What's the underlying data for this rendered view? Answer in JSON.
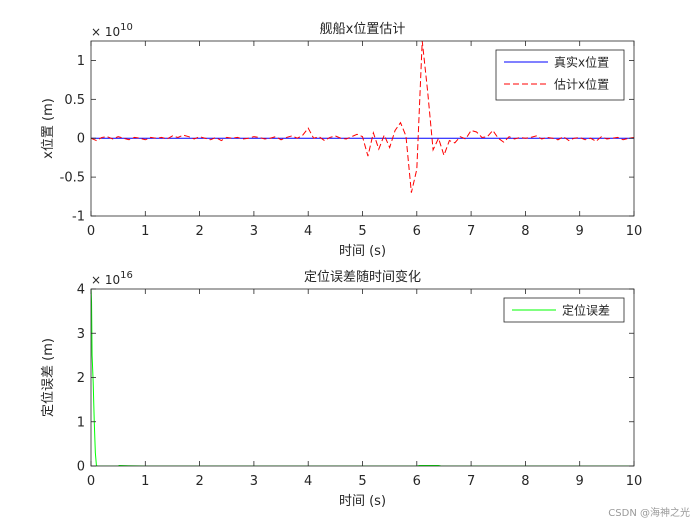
{
  "watermark": "CSDN @海神之光",
  "chart_data": [
    {
      "type": "line",
      "title": "舰船x位置估计",
      "xlabel": "时间 (s)",
      "ylabel": "x位置 (m)",
      "xlim": [
        0,
        10
      ],
      "ylim": [
        -1,
        1.25
      ],
      "xticks": [
        "0",
        "1",
        "2",
        "3",
        "4",
        "5",
        "6",
        "7",
        "8",
        "9",
        "10"
      ],
      "yticks": [
        "-1",
        "-0.5",
        "0",
        "0.5",
        "1"
      ],
      "y_exponent_base": "× 10",
      "y_exponent_power": "10",
      "grid": false,
      "legend_position": "top-right",
      "series": [
        {
          "name": "真实x位置",
          "color": "#0000ff",
          "style": "solid",
          "x": [
            0,
            10
          ],
          "y": [
            0,
            0
          ]
        },
        {
          "name": "估计x位置",
          "color": "#ff0000",
          "style": "dashed",
          "x": [
            0,
            0.1,
            0.2,
            0.3,
            0.4,
            0.5,
            0.6,
            0.7,
            0.8,
            0.9,
            1.0,
            1.1,
            1.2,
            1.3,
            1.4,
            1.5,
            1.6,
            1.7,
            1.8,
            1.9,
            2.0,
            2.1,
            2.2,
            2.3,
            2.4,
            2.5,
            2.6,
            2.7,
            2.8,
            2.9,
            3.0,
            3.1,
            3.2,
            3.3,
            3.4,
            3.5,
            3.6,
            3.7,
            3.8,
            3.9,
            4.0,
            4.1,
            4.2,
            4.3,
            4.4,
            4.5,
            4.6,
            4.7,
            4.8,
            4.9,
            5.0,
            5.1,
            5.2,
            5.3,
            5.4,
            5.5,
            5.6,
            5.7,
            5.8,
            5.9,
            6.0,
            6.1,
            6.2,
            6.3,
            6.4,
            6.5,
            6.6,
            6.7,
            6.8,
            6.9,
            7.0,
            7.1,
            7.2,
            7.3,
            7.4,
            7.5,
            7.6,
            7.7,
            7.8,
            7.9,
            8.0,
            8.1,
            8.2,
            8.3,
            8.4,
            8.5,
            8.6,
            8.7,
            8.8,
            8.9,
            9.0,
            9.1,
            9.2,
            9.3,
            9.4,
            9.5,
            9.6,
            9.7,
            9.8,
            9.9,
            10.0
          ],
          "y": [
            0.0,
            -0.03,
            0.01,
            0.02,
            -0.01,
            0.02,
            0.0,
            -0.02,
            0.01,
            0.0,
            -0.02,
            0.01,
            0.0,
            0.01,
            -0.01,
            0.03,
            0.01,
            0.04,
            0.02,
            -0.01,
            0.02,
            0.0,
            -0.02,
            0.01,
            -0.03,
            0.01,
            0.0,
            0.01,
            -0.01,
            0.0,
            0.02,
            0.01,
            -0.01,
            0.0,
            0.02,
            -0.02,
            0.01,
            0.03,
            0.0,
            0.04,
            0.13,
            0.0,
            0.02,
            -0.03,
            0.01,
            0.03,
            0.0,
            -0.01,
            0.02,
            0.05,
            0.02,
            -0.23,
            0.07,
            -0.14,
            0.04,
            -0.12,
            0.1,
            0.2,
            0.03,
            -0.7,
            -0.4,
            1.25,
            0.6,
            -0.15,
            0.0,
            -0.22,
            -0.03,
            -0.06,
            0.02,
            -0.01,
            0.1,
            0.08,
            0.01,
            0.02,
            0.1,
            0.0,
            -0.05,
            0.02,
            -0.01,
            0.01,
            0.0,
            0.01,
            0.03,
            -0.01,
            0.01,
            0.0,
            -0.02,
            0.02,
            -0.03,
            0.0,
            0.01,
            -0.02,
            0.0,
            -0.04,
            0.02,
            -0.01,
            0.0,
            0.01,
            -0.02,
            0.0,
            0.01
          ]
        }
      ]
    },
    {
      "type": "line",
      "title": "定位误差随时间变化",
      "xlabel": "时间 (s)",
      "ylabel": "定位误差 (m)",
      "xlim": [
        0,
        10
      ],
      "ylim": [
        0,
        4
      ],
      "xticks": [
        "0",
        "1",
        "2",
        "3",
        "4",
        "5",
        "6",
        "7",
        "8",
        "9",
        "10"
      ],
      "yticks": [
        "0",
        "1",
        "2",
        "3",
        "4"
      ],
      "y_exponent_base": "× 10",
      "y_exponent_power": "16",
      "grid": false,
      "legend_position": "top-right",
      "series": [
        {
          "name": "定位误差",
          "color": "#00ff00",
          "style": "solid",
          "x": [
            0,
            0.01,
            0.02,
            0.04,
            0.06,
            0.08,
            0.1,
            0.12,
            0.5,
            0.52,
            1.0,
            6.0,
            6.05,
            6.4,
            6.45,
            10.0
          ],
          "y": [
            4.05,
            3.7,
            2.5,
            1.9,
            1.0,
            0.3,
            0.01,
            0.0,
            0.0,
            0.01,
            0.0,
            0.0,
            0.01,
            0.01,
            0.0,
            0.0
          ]
        }
      ]
    }
  ]
}
